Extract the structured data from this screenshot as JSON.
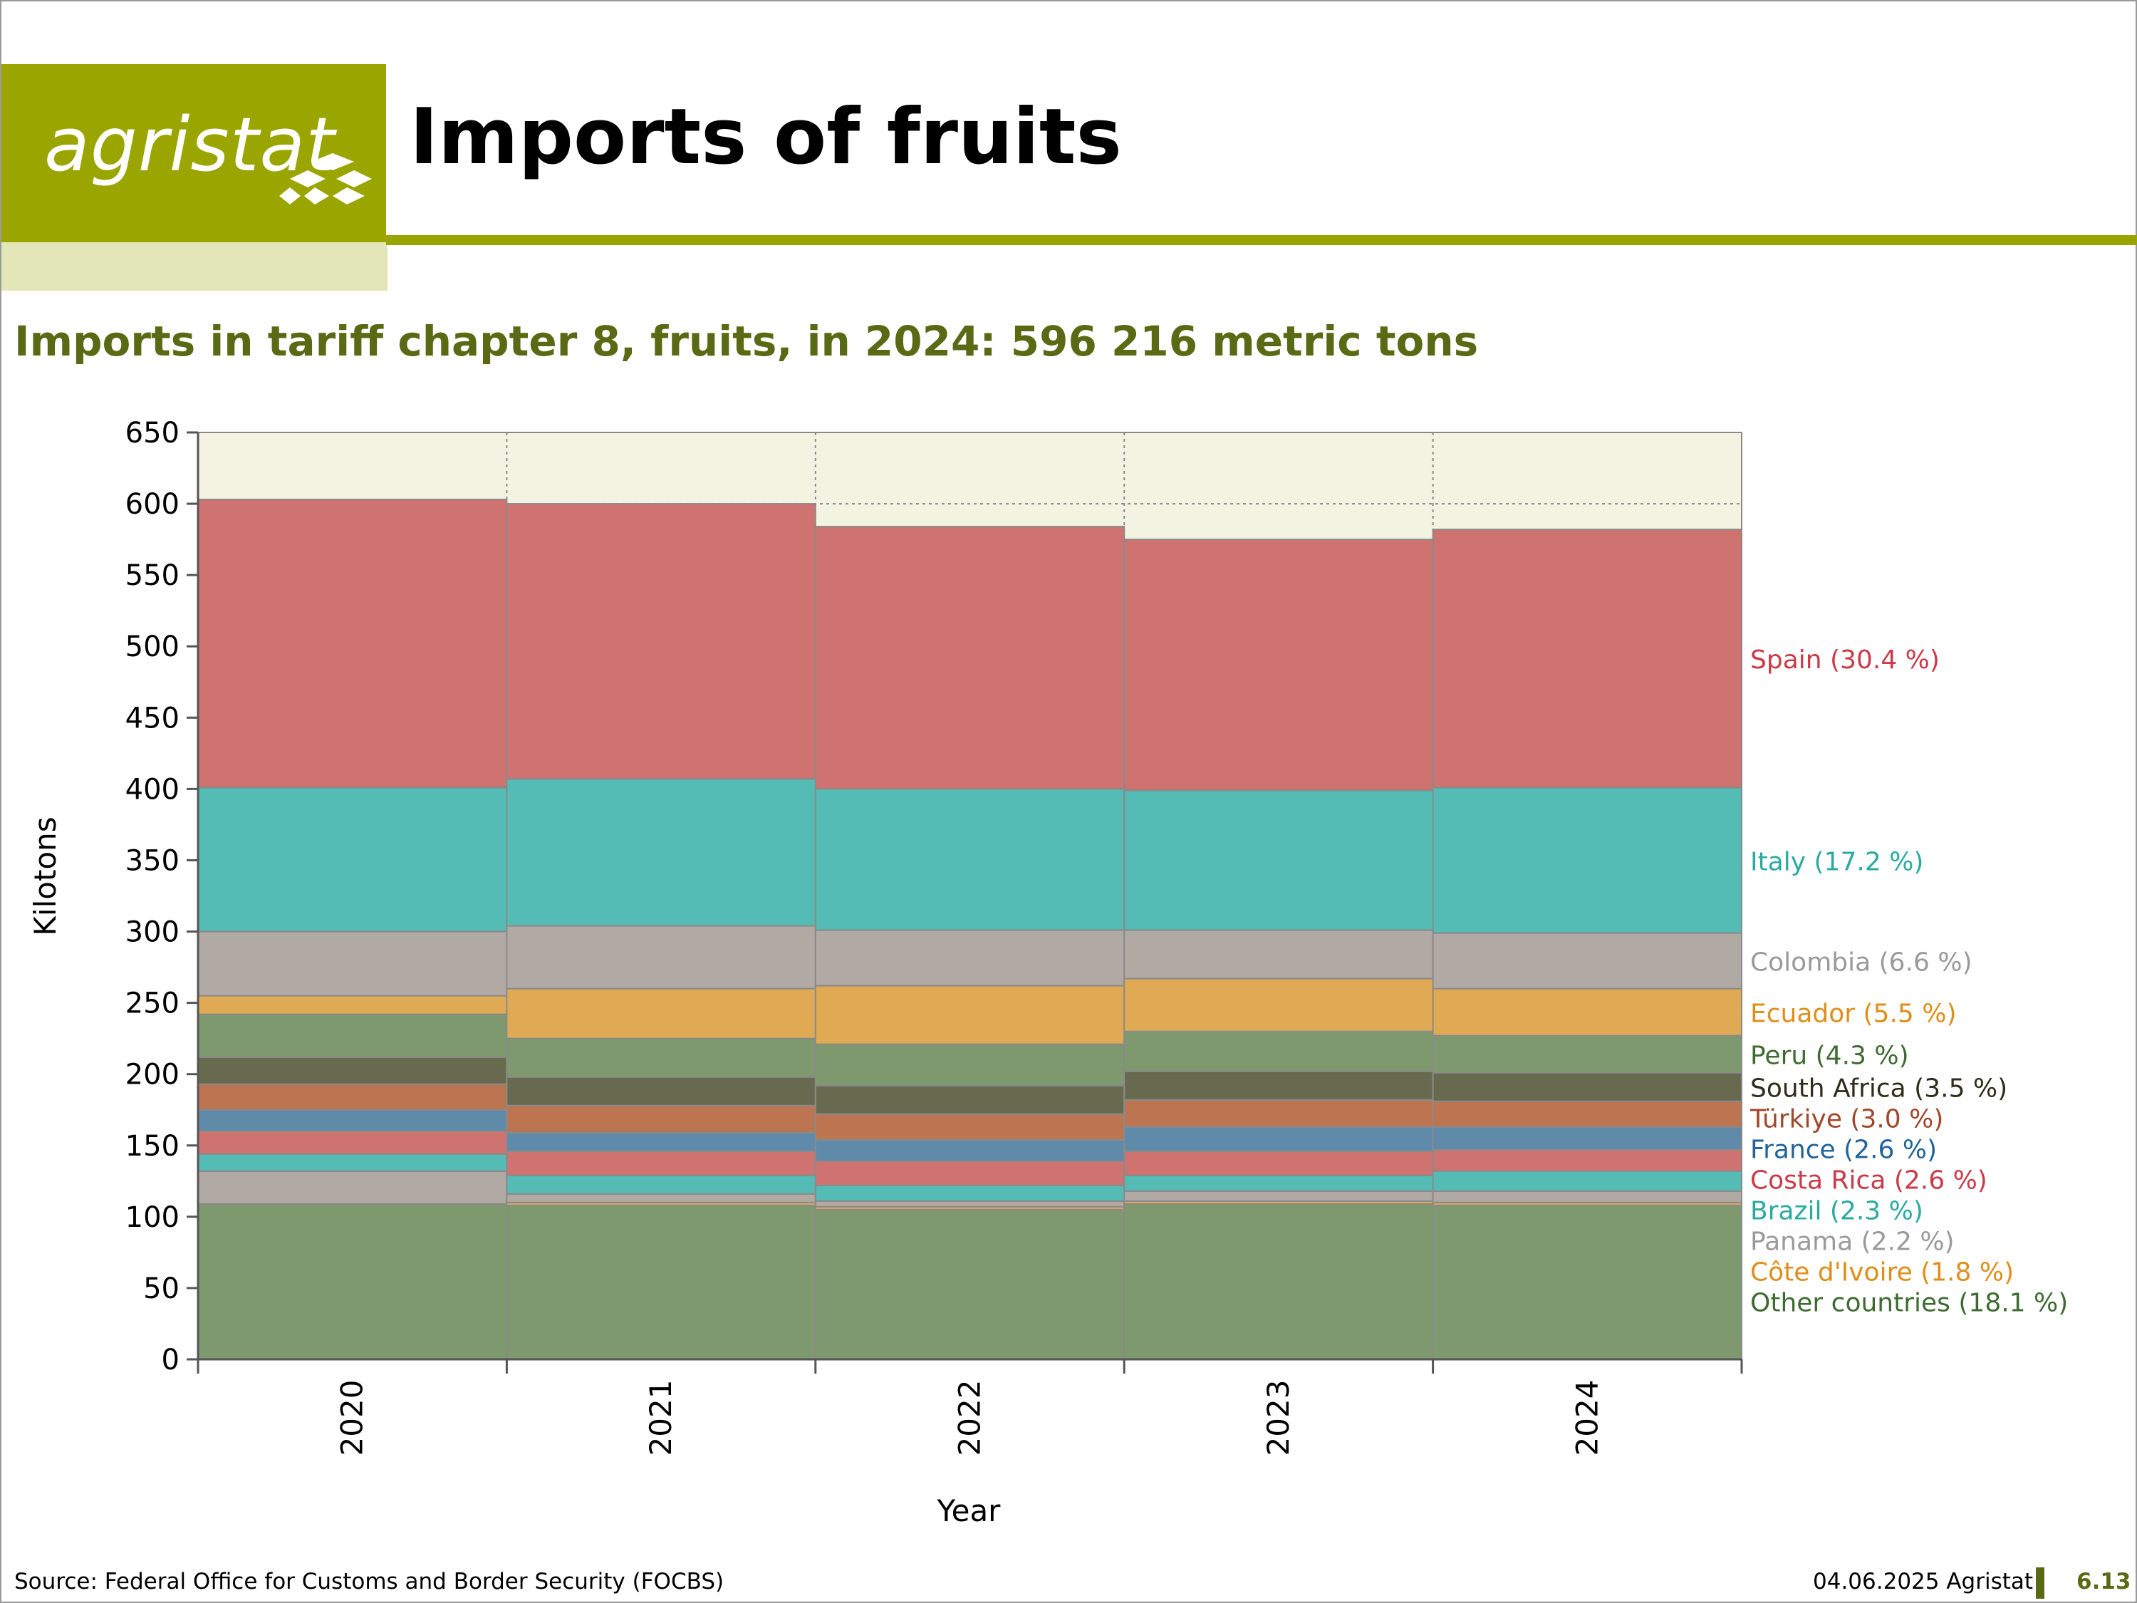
{
  "header": {
    "logo_text": "agristat",
    "title": "Imports of fruits",
    "subtitle": "Imports in tariff chapter 8, fruits, in 2024: 596 216 metric tons"
  },
  "footer": {
    "source": "Source: Federal Office for Customs and Border Security (FOCBS)",
    "date": "04.06.2025 Agristat",
    "page": "6.13"
  },
  "colors": {
    "brand_olive": "#9aa500",
    "brand_light": "#e3e6b6",
    "subtitle_text": "#5a6a14",
    "plot_background": "#f3f3e2"
  },
  "chart_data": {
    "type": "bar",
    "stacked": true,
    "xlabel": "Year",
    "ylabel": "Kilotons",
    "ylim": [
      0,
      650
    ],
    "yticks": [
      0,
      50,
      100,
      150,
      200,
      250,
      300,
      350,
      400,
      450,
      500,
      550,
      600,
      650
    ],
    "grid": true,
    "categories": [
      "2020",
      "2021",
      "2022",
      "2023",
      "2024"
    ],
    "series": [
      {
        "name": "Other countries",
        "label": "Other countries (18.1 %)",
        "color": "#7e996e",
        "label_color": "#3e6b31",
        "values": [
          109,
          108,
          105,
          109,
          108
        ]
      },
      {
        "name": "Côte d'Ivoire",
        "label": "Côte d'Ivoire (1.8 %)",
        "color": "#e0aa55",
        "label_color": "#df8f19",
        "values": [
          0,
          2,
          2,
          2,
          2
        ]
      },
      {
        "name": "Panama",
        "label": "Panama (2.2 %)",
        "color": "#b1a9a3",
        "label_color": "#9a9a9a",
        "values": [
          23,
          6,
          4,
          7,
          8
        ]
      },
      {
        "name": "Brazil",
        "label": "Brazil (2.3 %)",
        "color": "#54bcb5",
        "label_color": "#2aaaa0",
        "values": [
          12,
          13,
          11,
          11,
          14
        ]
      },
      {
        "name": "Costa Rica",
        "label": "Costa Rica (2.6 %)",
        "color": "#ce7370",
        "label_color": "#cc3a47",
        "values": [
          16,
          17,
          17,
          17,
          15
        ]
      },
      {
        "name": "France",
        "label": "France (2.6 %)",
        "color": "#5f8aaa",
        "label_color": "#21639a",
        "values": [
          15,
          13,
          15,
          17,
          16
        ]
      },
      {
        "name": "Türkiye",
        "label": "Türkiye (3.0 %)",
        "color": "#bc7550",
        "label_color": "#a0482a",
        "values": [
          18,
          19,
          18,
          19,
          18
        ]
      },
      {
        "name": "South Africa",
        "label": "South Africa (3.5 %)",
        "color": "#686a4f",
        "label_color": "#2e2e1a",
        "values": [
          19,
          20,
          20,
          20,
          20
        ]
      },
      {
        "name": "Peru",
        "label": "Peru (4.3 %)",
        "color": "#7e996e",
        "label_color": "#3e6b31",
        "values": [
          30,
          27,
          29,
          28,
          26
        ]
      },
      {
        "name": "Ecuador",
        "label": "Ecuador (5.5 %)",
        "color": "#e0aa55",
        "label_color": "#df8f19",
        "values": [
          13,
          35,
          41,
          37,
          33
        ]
      },
      {
        "name": "Colombia",
        "label": "Colombia (6.6 %)",
        "color": "#b1a9a3",
        "label_color": "#9a9a9a",
        "values": [
          45,
          44,
          39,
          34,
          39
        ]
      },
      {
        "name": "Italy",
        "label": "Italy (17.2 %)",
        "color": "#54bcb5",
        "label_color": "#2aaaa0",
        "values": [
          101,
          103,
          99,
          98,
          102
        ]
      },
      {
        "name": "Spain",
        "label": "Spain (30.4 %)",
        "color": "#ce7370",
        "label_color": "#cc3a47",
        "values": [
          202,
          193,
          184,
          176,
          181
        ]
      }
    ],
    "legend_placement": "right"
  }
}
